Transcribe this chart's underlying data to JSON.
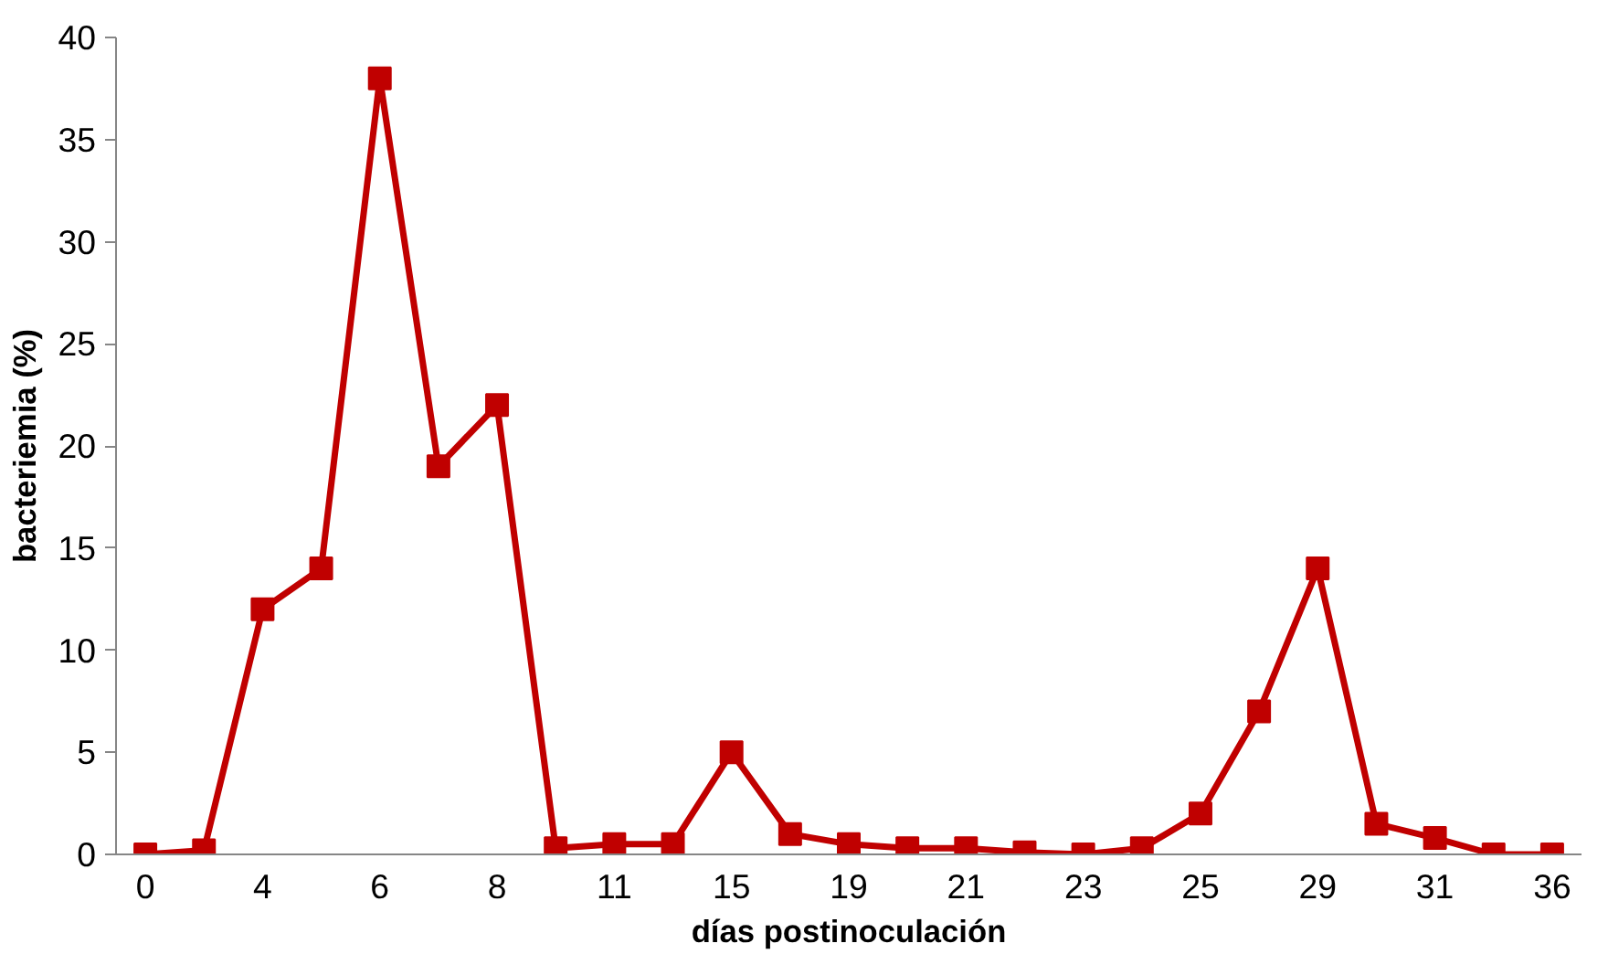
{
  "chart_data": {
    "type": "line",
    "xlabel": "días postinoculación",
    "ylabel": "bacteriemia (%)",
    "categories": [
      "0",
      null,
      "4",
      null,
      "6",
      null,
      "8",
      null,
      "11",
      null,
      "15",
      null,
      "19",
      null,
      "21",
      null,
      "23",
      null,
      "25",
      null,
      "29",
      null,
      "31",
      null,
      "36"
    ],
    "series": [
      {
        "color": "#c00000",
        "values": [
          0,
          0.2,
          12,
          14,
          38,
          19,
          22,
          0.3,
          0.5,
          0.5,
          5,
          1,
          0.5,
          0.3,
          0.3,
          0.1,
          0,
          0.3,
          2,
          7,
          14,
          1.5,
          0.8,
          0,
          0
        ]
      }
    ],
    "ylim": [
      0,
      40
    ],
    "yticks": [
      0,
      5,
      10,
      15,
      20,
      25,
      30,
      35,
      40
    ],
    "marker": "square",
    "line_style": "solid"
  }
}
